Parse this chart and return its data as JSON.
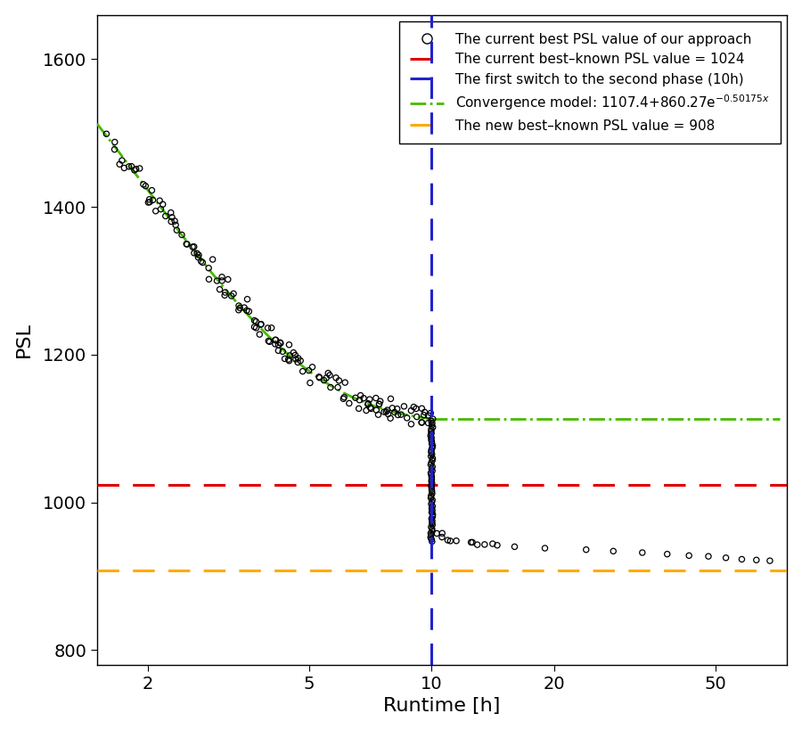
{
  "title": "",
  "xlabel": "Runtime [h]",
  "ylabel": "PSL",
  "xlim_log": [
    1.5,
    75
  ],
  "ylim": [
    780,
    1660
  ],
  "yticks": [
    800,
    1000,
    1200,
    1400,
    1600
  ],
  "xticks": [
    2,
    5,
    10,
    20,
    50
  ],
  "red_hline": 1024,
  "blue_vline": 10,
  "orange_hline": 908,
  "conv_model_a": 1107.4,
  "conv_model_b": 860.27,
  "conv_model_c": 0.50175,
  "colors": {
    "scatter": "#000000",
    "red_line": "#dd0000",
    "blue_line": "#2222cc",
    "green_line": "#44bb00",
    "orange_line": "#ffaa00"
  },
  "background_color": "#ffffff",
  "legend_labels": [
    "The current best PSL value of our approach",
    "The current best–known PSL value = 1024",
    "The first switch to the second phase (10h)",
    "Convergence model: 1107.4+860.27e$^{-0.50175x}$",
    "The new best–known PSL value = 908"
  ]
}
